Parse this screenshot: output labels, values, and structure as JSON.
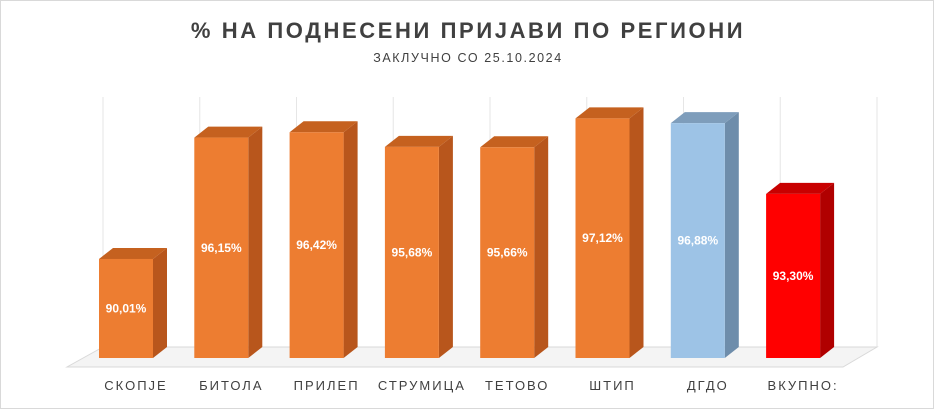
{
  "chart_data": {
    "type": "bar",
    "title": "% НА ПОДНЕСЕНИ ПРИЈАВИ ПО РЕГИОНИ",
    "subtitle": "ЗАКЛУЧНО СО 25.10.2024",
    "categories": [
      "СКОПЈЕ",
      "БИТОЛА",
      "ПРИЛЕП",
      "СТРУМИЦА",
      "ТЕТОВО",
      "ШТИП",
      "ДГДО",
      "ВКУПНО:"
    ],
    "values": [
      90.01,
      96.15,
      96.42,
      95.68,
      95.66,
      97.12,
      96.88,
      93.3
    ],
    "value_labels": [
      "90,01%",
      "96,15%",
      "96,42%",
      "95,68%",
      "95,66%",
      "97,12%",
      "96,88%",
      "93,30%"
    ],
    "bar_colors": [
      "#ED7D31",
      "#ED7D31",
      "#ED7D31",
      "#ED7D31",
      "#ED7D31",
      "#ED7D31",
      "#9DC3E6",
      "#FF0000"
    ],
    "side_colors": [
      "#B8561C",
      "#B8561C",
      "#B8561C",
      "#B8561C",
      "#B8561C",
      "#B8561C",
      "#6E8DAB",
      "#B00000"
    ],
    "top_colors": [
      "#C5611F",
      "#C5611F",
      "#C5611F",
      "#C5611F",
      "#C5611F",
      "#C5611F",
      "#7E9DBB",
      "#C80000"
    ],
    "xlabel": "",
    "ylabel": "",
    "ylim": [
      85,
      98
    ],
    "grid": true,
    "legend": "none",
    "three_d": true
  }
}
